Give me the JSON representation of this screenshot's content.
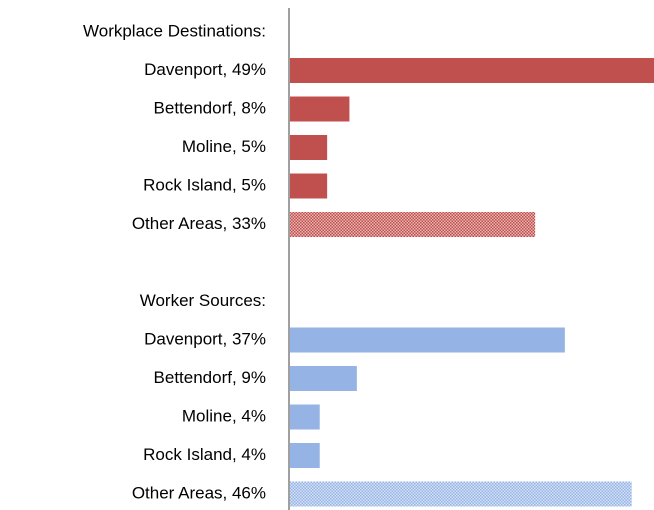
{
  "chart_data": {
    "type": "bar",
    "orientation": "horizontal",
    "categories": [
      "Workplace Destinations:",
      "Davenport, 49%",
      "Bettendorf, 8%",
      "Moline, 5%",
      "Rock Island, 5%",
      "Other Areas, 33%",
      null,
      "Worker Sources:",
      "Davenport, 37%",
      "Bettendorf, 9%",
      "Moline, 4%",
      "Rock Island, 4%",
      "Other Areas, 46%"
    ],
    "values": [
      null,
      49,
      8,
      5,
      5,
      33,
      null,
      null,
      37,
      9,
      4,
      4,
      46
    ],
    "colors": [
      null,
      "#c0504d",
      "#c0504d",
      "#c0504d",
      "#c0504d",
      "#c0504d",
      null,
      null,
      "#95b3e4",
      "#95b3e4",
      "#95b3e4",
      "#95b3e4",
      "#95b3e4"
    ],
    "patterns": [
      null,
      "solid",
      "solid",
      "solid",
      "solid",
      "hatched",
      null,
      null,
      "solid",
      "solid",
      "solid",
      "solid",
      "hatched"
    ],
    "xlim": [
      0,
      49
    ]
  }
}
